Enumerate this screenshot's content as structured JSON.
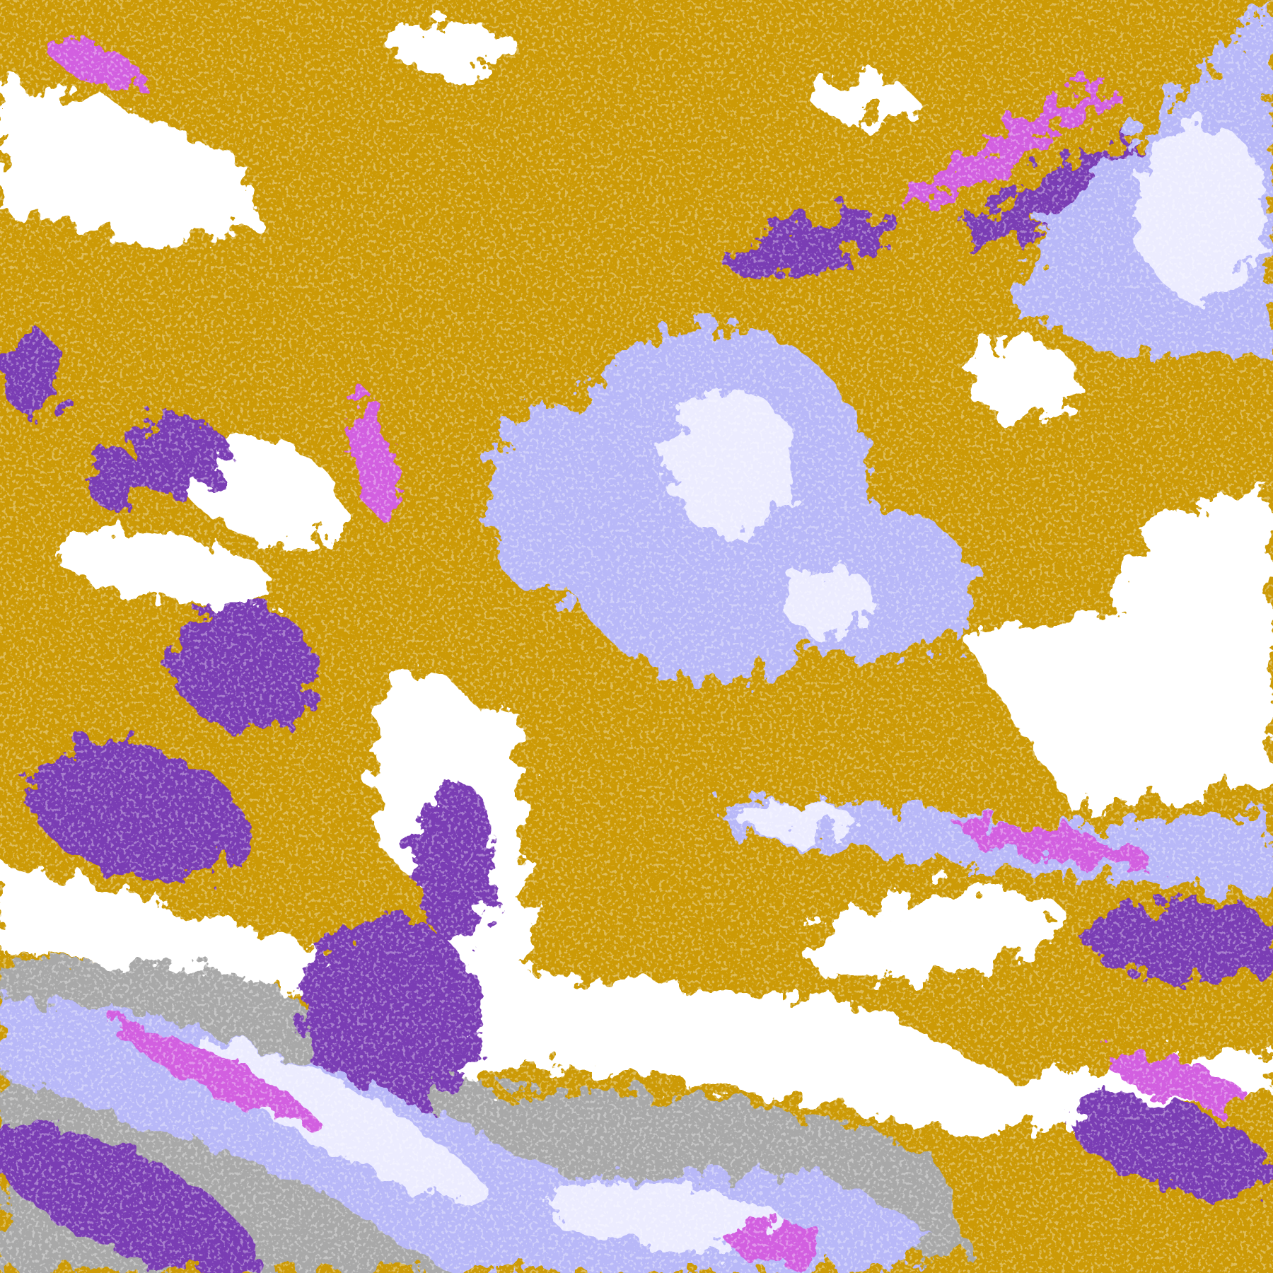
{
  "image": {
    "kind": "satellite-cloud-classification",
    "palette": {
      "clear": "#ffffff",
      "low_cloud": "#cc9a06",
      "mid_cloud": "#7a3cb4",
      "high_thin": "#d25ee0",
      "cirrus": "#b8b8f8",
      "deep_convective": "#ececff",
      "edge": "#a8a8a8"
    }
  }
}
